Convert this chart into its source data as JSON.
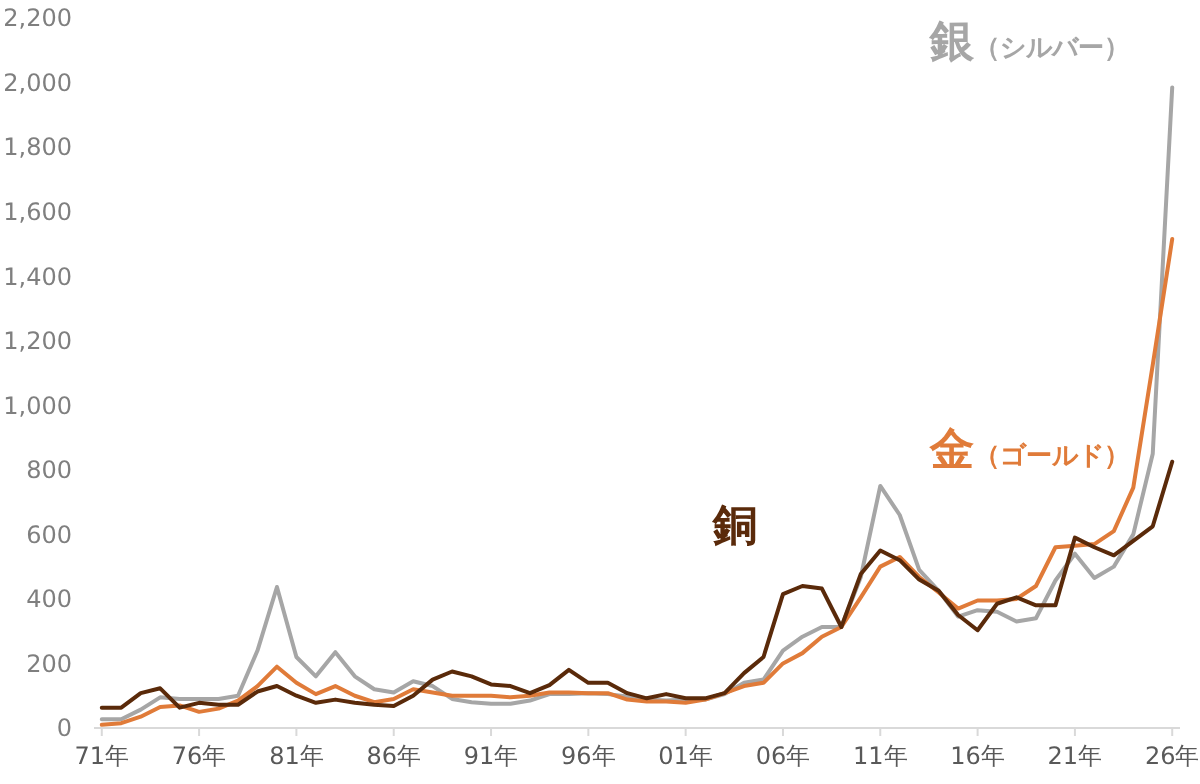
{
  "chart_data": {
    "type": "line",
    "categories": [
      "71年",
      null,
      null,
      null,
      null,
      "76年",
      null,
      null,
      null,
      null,
      "81年",
      null,
      null,
      null,
      null,
      "86年",
      null,
      null,
      null,
      null,
      "91年",
      null,
      null,
      null,
      null,
      "96年",
      null,
      null,
      null,
      null,
      "01年",
      null,
      null,
      null,
      null,
      "06年",
      null,
      null,
      null,
      null,
      "11年",
      null,
      null,
      null,
      null,
      "16年",
      null,
      null,
      null,
      null,
      "21年",
      null,
      null,
      null,
      null,
      "26年"
    ],
    "series": [
      {
        "name": "銀（シルバー）",
        "color": "#a6a6a6",
        "values": [
          27,
          27,
          57,
          95,
          90,
          90,
          90,
          100,
          240,
          437,
          220,
          160,
          235,
          160,
          120,
          110,
          145,
          130,
          90,
          80,
          75,
          75,
          85,
          105,
          105,
          108,
          105,
          98,
          88,
          85,
          88,
          88,
          105,
          140,
          150,
          240,
          283,
          313,
          313,
          468,
          750,
          660,
          490,
          425,
          345,
          365,
          360,
          330,
          340,
          457,
          540,
          465,
          500,
          600,
          850,
          1985
        ]
      },
      {
        "name": "金（ゴールド）",
        "color": "#e07b39",
        "values": [
          10,
          15,
          35,
          65,
          70,
          50,
          60,
          85,
          130,
          190,
          140,
          105,
          130,
          100,
          80,
          90,
          120,
          110,
          100,
          100,
          100,
          95,
          100,
          110,
          110,
          108,
          108,
          88,
          82,
          82,
          78,
          88,
          108,
          130,
          140,
          200,
          232,
          283,
          313,
          405,
          500,
          530,
          468,
          420,
          370,
          395,
          395,
          400,
          440,
          560,
          565,
          570,
          610,
          745,
          1125,
          1515
        ]
      },
      {
        "name": "銅",
        "color": "#5a2a0a",
        "values": [
          63,
          63,
          108,
          123,
          63,
          78,
          72,
          72,
          113,
          130,
          100,
          78,
          88,
          78,
          72,
          68,
          100,
          150,
          175,
          160,
          135,
          130,
          108,
          133,
          180,
          140,
          140,
          108,
          92,
          105,
          92,
          92,
          108,
          170,
          220,
          415,
          440,
          432,
          313,
          477,
          550,
          520,
          460,
          425,
          350,
          303,
          385,
          405,
          380,
          380,
          590,
          560,
          535,
          580,
          625,
          825
        ]
      }
    ],
    "ylim": [
      0,
      2200
    ],
    "yticks": [
      {
        "value": 0,
        "label": "0"
      },
      {
        "value": 200,
        "label": "200"
      },
      {
        "value": 400,
        "label": "400"
      },
      {
        "value": 600,
        "label": "600"
      },
      {
        "value": 800,
        "label": "800"
      },
      {
        "value": 1000,
        "label": "1,000"
      },
      {
        "value": 1200,
        "label": "1,200"
      },
      {
        "value": 1400,
        "label": "1,400"
      },
      {
        "value": 1600,
        "label": "1,600"
      },
      {
        "value": 1800,
        "label": "1,800"
      },
      {
        "value": 2000,
        "label": "2,000"
      },
      {
        "value": 2200,
        "label": "2,200"
      }
    ],
    "grid": false,
    "marker": "none",
    "line_style": "solid"
  }
}
